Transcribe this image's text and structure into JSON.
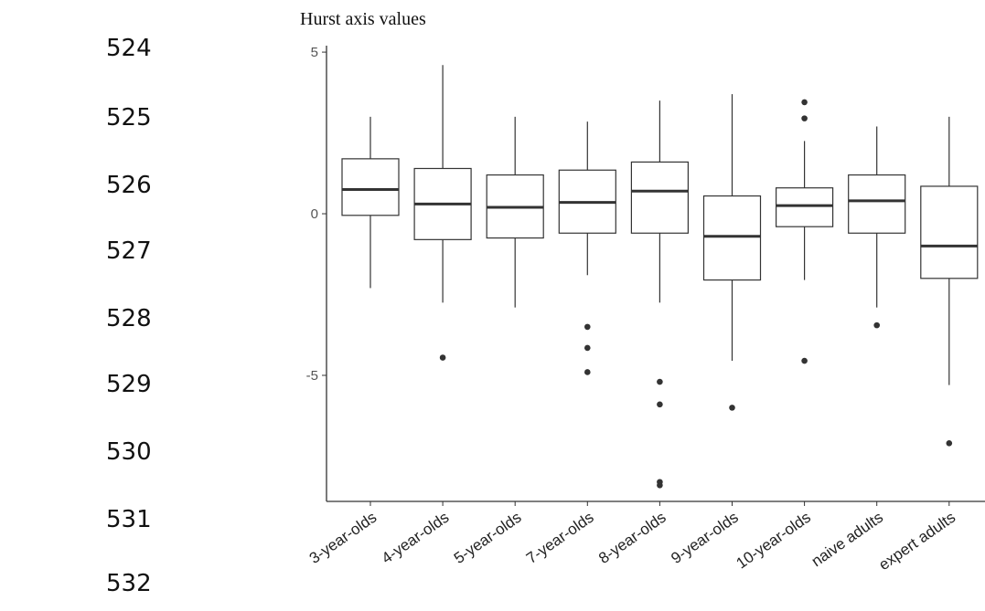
{
  "line_numbers": [
    "524",
    "525",
    "526",
    "527",
    "528",
    "529",
    "530",
    "531",
    "532"
  ],
  "chart_data": {
    "type": "box",
    "title": "Hurst axis values",
    "xlabel": "",
    "ylabel": "",
    "ylim": [
      -8.9,
      5.2
    ],
    "yticks": [
      5,
      0,
      -5
    ],
    "ytick_labels": [
      "5",
      "0",
      "-5"
    ],
    "grid": false,
    "categories": [
      "3-year-olds",
      "4-year-olds",
      "5-year-olds",
      "7-year-olds",
      "8-year-olds",
      "9-year-olds",
      "10-year-olds",
      "naive adults",
      "expert adults"
    ],
    "boxes": [
      {
        "whisker_low": -2.3,
        "q1": -0.05,
        "median": 0.75,
        "q3": 1.7,
        "whisker_high": 3.0,
        "outliers": []
      },
      {
        "whisker_low": -2.75,
        "q1": -0.8,
        "median": 0.3,
        "q3": 1.4,
        "whisker_high": 4.6,
        "outliers": [
          -4.45
        ]
      },
      {
        "whisker_low": -2.9,
        "q1": -0.75,
        "median": 0.2,
        "q3": 1.2,
        "whisker_high": 3.0,
        "outliers": []
      },
      {
        "whisker_low": -1.9,
        "q1": -0.6,
        "median": 0.35,
        "q3": 1.35,
        "whisker_high": 2.85,
        "outliers": [
          -3.5,
          -4.15,
          -4.9
        ]
      },
      {
        "whisker_low": -2.75,
        "q1": -0.6,
        "median": 0.7,
        "q3": 1.6,
        "whisker_high": 3.5,
        "outliers": [
          -5.2,
          -5.9,
          -8.3,
          -8.4
        ]
      },
      {
        "whisker_low": -4.55,
        "q1": -2.05,
        "median": -0.7,
        "q3": 0.55,
        "whisker_high": 3.7,
        "outliers": [
          -6.0
        ]
      },
      {
        "whisker_low": -2.05,
        "q1": -0.4,
        "median": 0.25,
        "q3": 0.8,
        "whisker_high": 2.25,
        "outliers": [
          3.45,
          2.95,
          -4.55
        ]
      },
      {
        "whisker_low": -2.9,
        "q1": -0.6,
        "median": 0.4,
        "q3": 1.2,
        "whisker_high": 2.7,
        "outliers": [
          -3.45
        ]
      },
      {
        "whisker_low": -5.3,
        "q1": -2.0,
        "median": -1.0,
        "q3": 0.85,
        "whisker_high": 3.0,
        "outliers": [
          -7.1
        ]
      }
    ]
  }
}
